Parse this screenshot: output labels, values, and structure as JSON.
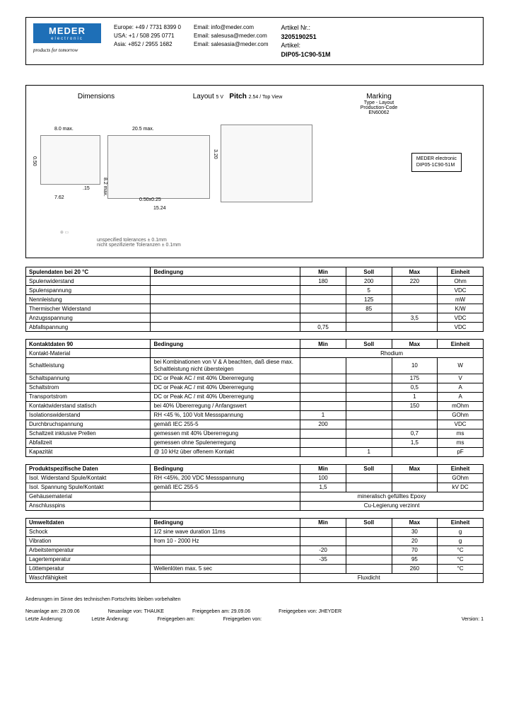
{
  "header": {
    "logo_main": "MEDER",
    "logo_sub": "electronic",
    "tagline": "products for tomorrow",
    "contacts": {
      "eu_label": "Europe:",
      "eu_phone": "+49 / 7731 8399 0",
      "eu_mail_label": "Email:",
      "eu_mail": "info@meder.com",
      "us_label": "USA:",
      "us_phone": "+1 / 508 295 0771",
      "us_mail_label": "Email:",
      "us_mail": "salesusa@meder.com",
      "as_label": "Asia:",
      "as_phone": "+852 / 2955 1682",
      "as_mail_label": "Email:",
      "as_mail": "salesasia@meder.com"
    },
    "article_no_label": "Artikel Nr.:",
    "article_no": "3205190251",
    "article_label": "Artikel:",
    "article": "DIP05-1C90-51M"
  },
  "diagram": {
    "dimensions": "Dimensions",
    "layout_label": "Layout",
    "layout_val": "5 V",
    "pitch_label": "Pitch",
    "pitch_val": "2.54 / Top View",
    "marking": "Marking",
    "marking_sub1": "Type - Layout",
    "marking_sub2": "Production-Code",
    "marking_sub3": "EN60062",
    "marking_box_l1": "MEDER electronic",
    "marking_box_l2": "DIP05-1C90-51M",
    "dim_w1": "8.0 max.",
    "dim_w2": "20.5 max.",
    "dim_h1": "0.50",
    "dim_h2": "3.20",
    "dim_p1": "7.62",
    "dim_p2": "8.2 max.",
    "dim_p3": "0.50x0.25",
    "dim_p4": "15.24",
    "dim_p5": ".15",
    "tol1": "unspecified tolerances ± 0.1mm",
    "tol2": "nicht spezifizierte Toleranzen ± 0.1mm"
  },
  "columns": {
    "cond": "Bedingung",
    "min": "Min",
    "soll": "Soll",
    "max": "Max",
    "unit": "Einheit"
  },
  "t1": {
    "title": "Spulendaten bei 20 °C",
    "rows": [
      {
        "l": "Spulenwiderstand",
        "c": "",
        "min": "180",
        "soll": "200",
        "max": "220",
        "u": "Ohm"
      },
      {
        "l": "Spulenspannung",
        "c": "",
        "min": "",
        "soll": "5",
        "max": "",
        "u": "VDC"
      },
      {
        "l": "Nennleistung",
        "c": "",
        "min": "",
        "soll": "125",
        "max": "",
        "u": "mW"
      },
      {
        "l": "Thermischer Widerstand",
        "c": "",
        "min": "",
        "soll": "85",
        "max": "",
        "u": "K/W"
      },
      {
        "l": "Anzugsspannung",
        "c": "",
        "min": "",
        "soll": "",
        "max": "3,5",
        "u": "VDC"
      },
      {
        "l": "Abfallspannung",
        "c": "",
        "min": "0,75",
        "soll": "",
        "max": "",
        "u": "VDC"
      }
    ]
  },
  "t2": {
    "title": "Kontaktdaten 90",
    "material_row": {
      "l": "Kontakt-Material",
      "note": "Rhodium"
    },
    "rows": [
      {
        "l": "Schaltleistung",
        "c": "bei Kombinationen von V & A beachten, daß diese max. Schaltleistung nicht übersteigen",
        "min": "",
        "soll": "",
        "max": "10",
        "u": "W"
      },
      {
        "l": "Schaltspannung",
        "c": "DC or Peak AC / mit 40% Übererregung",
        "min": "",
        "soll": "",
        "max": "175",
        "u": "V"
      },
      {
        "l": "Schaltstrom",
        "c": "DC or Peak AC / mit 40% Übererregung",
        "min": "",
        "soll": "",
        "max": "0,5",
        "u": "A"
      },
      {
        "l": "Transportstrom",
        "c": "DC or Peak AC / mit 40% Übererregung",
        "min": "",
        "soll": "",
        "max": "1",
        "u": "A"
      },
      {
        "l": "Kontaktwiderstand statisch",
        "c": "bei 40% Übererregung / Anfangswert",
        "min": "",
        "soll": "",
        "max": "150",
        "u": "mOhm"
      },
      {
        "l": "Isolationswiderstand",
        "c": "RH <45 %, 100 Volt Messspannung",
        "min": "1",
        "soll": "",
        "max": "",
        "u": "GOhm"
      },
      {
        "l": "Durchbruchspannung",
        "c": "gemäß IEC 255-5",
        "min": "200",
        "soll": "",
        "max": "",
        "u": "VDC"
      },
      {
        "l": "Schaltzeit inklusive Prellen",
        "c": "gemessen mit 40% Übererregung",
        "min": "",
        "soll": "",
        "max": "0,7",
        "u": "ms"
      },
      {
        "l": "Abfallzeit",
        "c": "gemessen ohne Spulenerregung",
        "min": "",
        "soll": "",
        "max": "1,5",
        "u": "ms"
      },
      {
        "l": "Kapazität",
        "c": "@ 10 kHz über offenem Kontakt",
        "min": "",
        "soll": "1",
        "max": "",
        "u": "pF"
      }
    ]
  },
  "t3": {
    "title": "Produktspezifische Daten",
    "rows": [
      {
        "l": "Isol. Widerstand Spule/Kontakt",
        "c": "RH <45%, 200 VDC Messspannung",
        "min": "100",
        "soll": "",
        "max": "",
        "u": "GOhm"
      },
      {
        "l": "Isol. Spannung Spule/Kontakt",
        "c": "gemäß IEC 255-5",
        "min": "1,5",
        "soll": "",
        "max": "",
        "u": "kV DC"
      }
    ],
    "gehause": {
      "l": "Gehäusematerial",
      "note": "mineralisch gefülltes Epoxy"
    },
    "pins": {
      "l": "Anschlusspins",
      "note": "Cu-Legierung verzinnt"
    }
  },
  "t4": {
    "title": "Umweltdaten",
    "rows": [
      {
        "l": "Schock",
        "c": "1/2 sine wave duration 11ms",
        "min": "",
        "soll": "",
        "max": "30",
        "u": "g"
      },
      {
        "l": "Vibration",
        "c": "from 10 - 2000 Hz",
        "min": "",
        "soll": "",
        "max": "20",
        "u": "g"
      },
      {
        "l": "Arbeitstemperatur",
        "c": "",
        "min": "-20",
        "soll": "",
        "max": "70",
        "u": "°C"
      },
      {
        "l": "Lagertemperatur",
        "c": "",
        "min": "-35",
        "soll": "",
        "max": "95",
        "u": "°C"
      },
      {
        "l": "Löttemperatur",
        "c": "Wellenlöten max. 5 sec",
        "min": "",
        "soll": "",
        "max": "260",
        "u": "°C"
      }
    ],
    "wash": {
      "l": "Waschfähigkeit",
      "c": "",
      "note": "Fluxdicht"
    }
  },
  "footer": {
    "disclaimer": "Änderungen im Sinne des technischen Fortschritts bleiben vorbehalten",
    "r1a_l": "Neuanlage am:",
    "r1a_v": "29.09.06",
    "r1b_l": "Neuanlage von:",
    "r1b_v": "THAUKE",
    "r1c_l": "Freigegeben am:",
    "r1c_v": "29.09.06",
    "r1d_l": "Freigegeben von:",
    "r1d_v": "JHEYDER",
    "r2a_l": "Letzte Änderung:",
    "r2b_l": "Letzte Änderung:",
    "r2c_l": "Freigegeben am:",
    "r2d_l": "Freigegeben von:",
    "ver_l": "Version:",
    "ver_v": "1"
  }
}
